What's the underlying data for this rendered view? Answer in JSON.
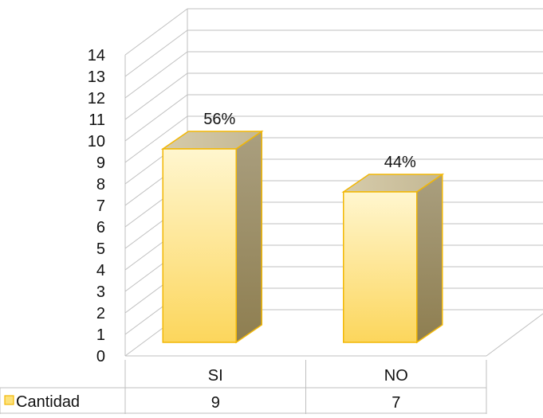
{
  "chart_data": {
    "type": "bar",
    "categories": [
      "SI",
      "NO"
    ],
    "series": [
      {
        "name": "Cantidad",
        "values": [
          9,
          7
        ],
        "color": "#fde27a"
      }
    ],
    "data_labels": [
      "56%",
      "44%"
    ],
    "ylim": [
      0,
      14
    ],
    "yticks": [
      "0",
      "1",
      "2",
      "3",
      "4",
      "5",
      "6",
      "7",
      "8",
      "9",
      "10",
      "11",
      "12",
      "13",
      "14"
    ],
    "grid": true,
    "data_table": true,
    "three_d": true
  }
}
